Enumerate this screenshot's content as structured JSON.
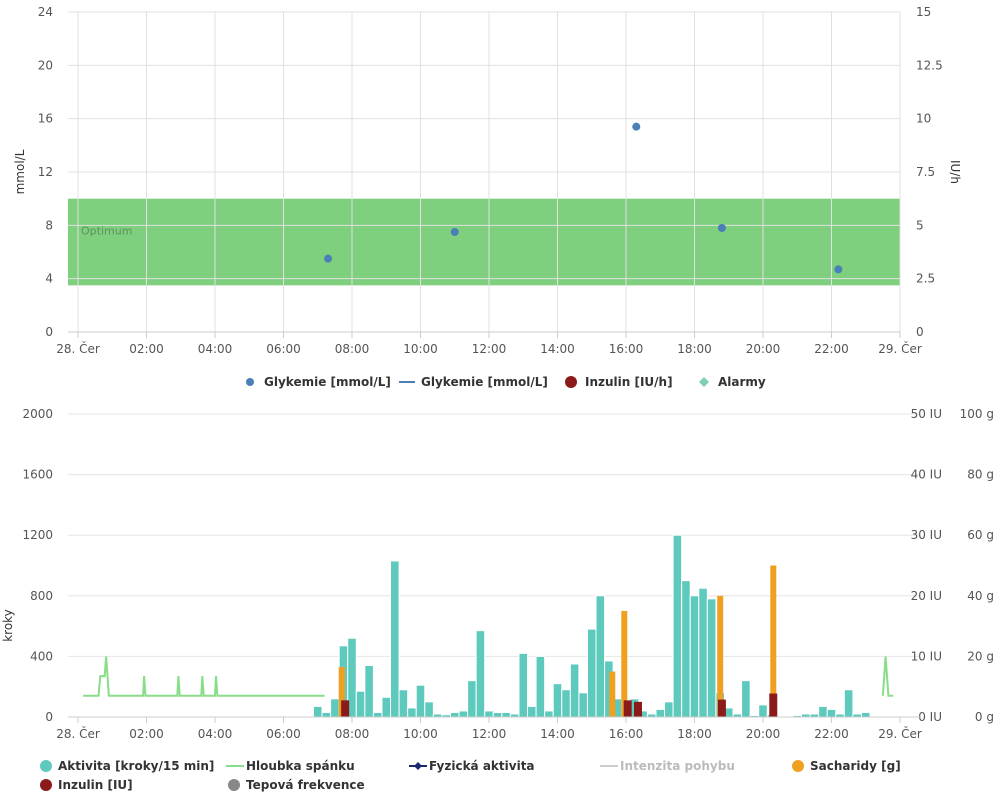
{
  "chart_data": [
    {
      "type": "scatter",
      "x_ticks": [
        "28. Čer",
        "02:00",
        "04:00",
        "06:00",
        "08:00",
        "10:00",
        "12:00",
        "14:00",
        "16:00",
        "18:00",
        "20:00",
        "22:00",
        "29. Čer"
      ],
      "x_range_hours": [
        0,
        24
      ],
      "y_left": {
        "label": "mmol/L",
        "range": [
          0,
          24
        ],
        "ticks": [
          0,
          4,
          8,
          12,
          16,
          20,
          24
        ]
      },
      "y_right": {
        "label": "IU/h",
        "range": [
          0,
          15
        ],
        "ticks": [
          "0",
          "2.5",
          "5",
          "7.5",
          "10",
          "12.5",
          "15"
        ]
      },
      "band": {
        "label": "Optimum",
        "from": 3.5,
        "to": 10,
        "color": "#7ed07e"
      },
      "series": [
        {
          "name": "Glykemie [mmol/L]",
          "kind": "points",
          "color": "#4a7fb8",
          "points": [
            {
              "x": 7.3,
              "y": 5.5
            },
            {
              "x": 11.0,
              "y": 7.5
            },
            {
              "x": 16.3,
              "y": 15.4
            },
            {
              "x": 18.8,
              "y": 7.8
            },
            {
              "x": 22.2,
              "y": 4.7
            }
          ]
        }
      ],
      "legend": [
        {
          "label": "Glykemie [mmol/L]",
          "symbol": "dot",
          "color": "#4a7fb8"
        },
        {
          "label": "Glykemie [mmol/L]",
          "symbol": "line",
          "color": "#4a7fb8"
        },
        {
          "label": "Inzulin [IU/h]",
          "symbol": "dot-large",
          "color": "#8b1a1a"
        },
        {
          "label": "Alarmy",
          "symbol": "diamond",
          "color": "#7fd0b0"
        }
      ]
    },
    {
      "type": "bar",
      "x_ticks": [
        "28. Čer",
        "02:00",
        "04:00",
        "06:00",
        "08:00",
        "10:00",
        "12:00",
        "14:00",
        "16:00",
        "18:00",
        "20:00",
        "22:00",
        "29. Čer"
      ],
      "x_range_hours": [
        0,
        24
      ],
      "y_left": {
        "label": "kroky",
        "range": [
          0,
          2000
        ],
        "ticks": [
          0,
          400,
          800,
          1200,
          1600,
          2000
        ]
      },
      "y_right_iu": {
        "ticks": [
          "0 IU",
          "10 IU",
          "20 IU",
          "30 IU",
          "40 IU",
          "50 IU"
        ]
      },
      "y_right_g": {
        "ticks": [
          "0 g",
          "20 g",
          "40 g",
          "60 g",
          "80 g",
          "100 g"
        ]
      },
      "activity": {
        "name": "Aktivita [kroky/15 min]",
        "color": "#5ecabd",
        "bars": [
          {
            "x": 7.0,
            "y": 70
          },
          {
            "x": 7.25,
            "y": 30
          },
          {
            "x": 7.5,
            "y": 120
          },
          {
            "x": 7.75,
            "y": 470
          },
          {
            "x": 8.0,
            "y": 520
          },
          {
            "x": 8.25,
            "y": 170
          },
          {
            "x": 8.5,
            "y": 340
          },
          {
            "x": 8.75,
            "y": 30
          },
          {
            "x": 9.0,
            "y": 130
          },
          {
            "x": 9.25,
            "y": 1030
          },
          {
            "x": 9.5,
            "y": 180
          },
          {
            "x": 9.75,
            "y": 60
          },
          {
            "x": 10.0,
            "y": 210
          },
          {
            "x": 10.25,
            "y": 100
          },
          {
            "x": 10.5,
            "y": 20
          },
          {
            "x": 10.75,
            "y": 15
          },
          {
            "x": 11.0,
            "y": 30
          },
          {
            "x": 11.25,
            "y": 40
          },
          {
            "x": 11.5,
            "y": 240
          },
          {
            "x": 11.75,
            "y": 570
          },
          {
            "x": 12.0,
            "y": 40
          },
          {
            "x": 12.25,
            "y": 30
          },
          {
            "x": 12.5,
            "y": 30
          },
          {
            "x": 12.75,
            "y": 20
          },
          {
            "x": 13.0,
            "y": 420
          },
          {
            "x": 13.25,
            "y": 70
          },
          {
            "x": 13.5,
            "y": 400
          },
          {
            "x": 13.75,
            "y": 40
          },
          {
            "x": 14.0,
            "y": 220
          },
          {
            "x": 14.25,
            "y": 180
          },
          {
            "x": 14.5,
            "y": 350
          },
          {
            "x": 14.75,
            "y": 160
          },
          {
            "x": 15.0,
            "y": 580
          },
          {
            "x": 15.25,
            "y": 800
          },
          {
            "x": 15.5,
            "y": 370
          },
          {
            "x": 15.75,
            "y": 120
          },
          {
            "x": 16.0,
            "y": 110
          },
          {
            "x": 16.25,
            "y": 120
          },
          {
            "x": 16.5,
            "y": 40
          },
          {
            "x": 16.75,
            "y": 20
          },
          {
            "x": 17.0,
            "y": 50
          },
          {
            "x": 17.25,
            "y": 100
          },
          {
            "x": 17.5,
            "y": 1200
          },
          {
            "x": 17.75,
            "y": 900
          },
          {
            "x": 18.0,
            "y": 800
          },
          {
            "x": 18.25,
            "y": 850
          },
          {
            "x": 18.5,
            "y": 780
          },
          {
            "x": 18.75,
            "y": 160
          },
          {
            "x": 19.0,
            "y": 60
          },
          {
            "x": 19.25,
            "y": 20
          },
          {
            "x": 19.5,
            "y": 240
          },
          {
            "x": 19.75,
            "y": 10
          },
          {
            "x": 20.0,
            "y": 80
          },
          {
            "x": 20.25,
            "y": 15
          },
          {
            "x": 21.0,
            "y": 10
          },
          {
            "x": 21.25,
            "y": 20
          },
          {
            "x": 21.5,
            "y": 20
          },
          {
            "x": 21.75,
            "y": 70
          },
          {
            "x": 22.0,
            "y": 50
          },
          {
            "x": 22.25,
            "y": 20
          },
          {
            "x": 22.5,
            "y": 180
          },
          {
            "x": 22.75,
            "y": 20
          },
          {
            "x": 23.0,
            "y": 30
          }
        ]
      },
      "carbs": {
        "name": "Sacharidy [g]",
        "color": "#f0a020",
        "bars": [
          {
            "x": 7.7,
            "y": 330
          },
          {
            "x": 15.6,
            "y": 300
          },
          {
            "x": 15.95,
            "y": 700
          },
          {
            "x": 18.75,
            "y": 800
          },
          {
            "x": 20.3,
            "y": 1000
          }
        ]
      },
      "insulin": {
        "name": "Inzulin [IU]",
        "color": "#8b1a1a",
        "bars": [
          {
            "x": 7.8,
            "y": 110
          },
          {
            "x": 16.05,
            "y": 110
          },
          {
            "x": 16.35,
            "y": 100
          },
          {
            "x": 18.8,
            "y": 115
          },
          {
            "x": 20.3,
            "y": 155
          }
        ]
      },
      "sleep": {
        "name": "Hloubka spánku",
        "color": "#88dd88",
        "points": [
          {
            "x": 0.15,
            "y": 140
          },
          {
            "x": 0.6,
            "y": 140
          },
          {
            "x": 0.65,
            "y": 270
          },
          {
            "x": 0.78,
            "y": 270
          },
          {
            "x": 0.82,
            "y": 400
          },
          {
            "x": 0.86,
            "y": 270
          },
          {
            "x": 0.9,
            "y": 140
          },
          {
            "x": 1.9,
            "y": 140
          },
          {
            "x": 1.93,
            "y": 270
          },
          {
            "x": 1.97,
            "y": 140
          },
          {
            "x": 2.9,
            "y": 140
          },
          {
            "x": 2.93,
            "y": 270
          },
          {
            "x": 2.97,
            "y": 140
          },
          {
            "x": 3.6,
            "y": 140
          },
          {
            "x": 3.63,
            "y": 270
          },
          {
            "x": 3.67,
            "y": 140
          },
          {
            "x": 4.0,
            "y": 140
          },
          {
            "x": 4.03,
            "y": 270
          },
          {
            "x": 4.07,
            "y": 140
          },
          {
            "x": 7.2,
            "y": 140
          },
          {
            "x": 23.5,
            "y": 140
          },
          {
            "x": 23.58,
            "y": 400
          },
          {
            "x": 23.66,
            "y": 140
          },
          {
            "x": 23.8,
            "y": 140
          }
        ],
        "gaps_after_x": [
          7.2
        ]
      },
      "legend": [
        {
          "label": "Aktivita [kroky/15 min]",
          "symbol": "dot-large",
          "color": "#5ecabd"
        },
        {
          "label": "Hloubka spánku",
          "symbol": "line",
          "color": "#88dd88"
        },
        {
          "label": "Fyzická aktivita",
          "symbol": "line-diamond",
          "color": "#1a2a6c"
        },
        {
          "label": "Intenzita pohybu",
          "symbol": "line",
          "color": "#cccccc",
          "muted": true
        },
        {
          "label": "Sacharidy [g]",
          "symbol": "dot-large",
          "color": "#f0a020"
        },
        {
          "label": "Inzulin [IU]",
          "symbol": "dot-large",
          "color": "#8b1a1a"
        },
        {
          "label": "Tepová frekvence",
          "symbol": "dot-large",
          "color": "#888888"
        }
      ]
    }
  ]
}
